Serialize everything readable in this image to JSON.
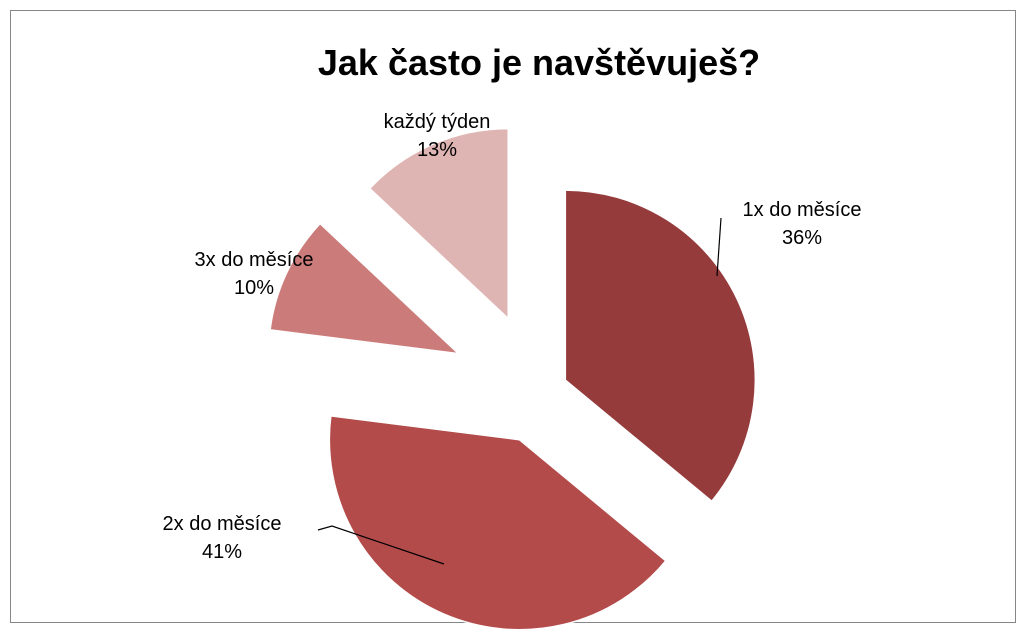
{
  "chart_data": {
    "type": "pie",
    "title": "Jak často je navštěvuješ?",
    "categories": [
      "1x do měsíce",
      "2x do měsíce",
      "3x do měsíce",
      "každý týden"
    ],
    "values": [
      36,
      41,
      10,
      13
    ],
    "value_labels": [
      "36%",
      "41%",
      "10%",
      "13%"
    ],
    "colors": [
      "#953B3C",
      "#B34B4A",
      "#CB7C7A",
      "#DFB5B4"
    ],
    "exploded": true,
    "legend": "none"
  }
}
